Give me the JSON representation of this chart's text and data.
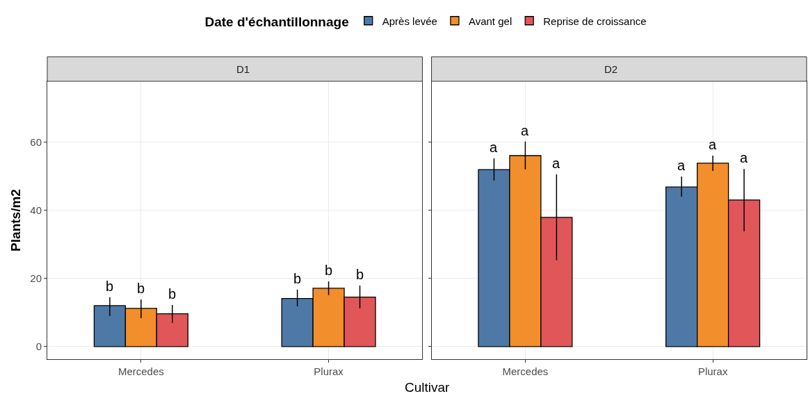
{
  "chart_data": [
    {
      "type": "bar",
      "title": "D1",
      "xlabel": "Cultivar",
      "ylabel": "Plants/m2",
      "legend_title": "Date d'échantillonnage",
      "legend": "top",
      "categories": [
        "Mercedes",
        "Plurax"
      ],
      "series": [
        {
          "name": "Après levée",
          "color": "#4e79a7",
          "values": [
            12.0,
            14.1
          ],
          "errors": [
            [
              9.0,
              14.5
            ],
            [
              11.8,
              16.7
            ]
          ]
        },
        {
          "name": "Avant gel",
          "color": "#f28e2b",
          "values": [
            11.2,
            17.1
          ],
          "errors": [
            [
              8.3,
              13.8
            ],
            [
              15.1,
              19.1
            ]
          ]
        },
        {
          "name": "Reprise de croissance",
          "color": "#e15759",
          "values": [
            9.6,
            14.5
          ],
          "errors": [
            [
              6.9,
              12.2
            ],
            [
              11.2,
              17.9
            ]
          ]
        }
      ],
      "ylim": [
        -3.7,
        77.8
      ],
      "yticks": [
        0,
        20,
        40,
        60
      ],
      "grid": true,
      "annotations": [
        "b",
        "b",
        "b",
        "b",
        "b",
        "b"
      ]
    },
    {
      "type": "bar",
      "title": "D2",
      "tick_labels": "x",
      "categories": [
        "Mercedes",
        "Plurax"
      ],
      "series": [
        {
          "color": "#4e79a7",
          "values": [
            51.9,
            46.8
          ],
          "errors": [
            [
              48.7,
              55.2
            ],
            [
              44.0,
              49.9
            ]
          ]
        },
        {
          "color": "#f28e2b",
          "values": [
            56.0,
            53.8
          ],
          "errors": [
            [
              52.0,
              60.1
            ],
            [
              51.5,
              56.0
            ]
          ]
        },
        {
          "color": "#e15759",
          "values": [
            37.9,
            43.0
          ],
          "errors": [
            [
              25.3,
              50.5
            ],
            [
              33.8,
              52.1
            ]
          ]
        }
      ],
      "ylim": [
        -3.7,
        77.8
      ],
      "yticks": [
        0,
        20,
        40,
        60
      ],
      "grid": true,
      "annotations": [
        "a",
        "a",
        "a",
        "a",
        "a",
        "a"
      ]
    }
  ]
}
